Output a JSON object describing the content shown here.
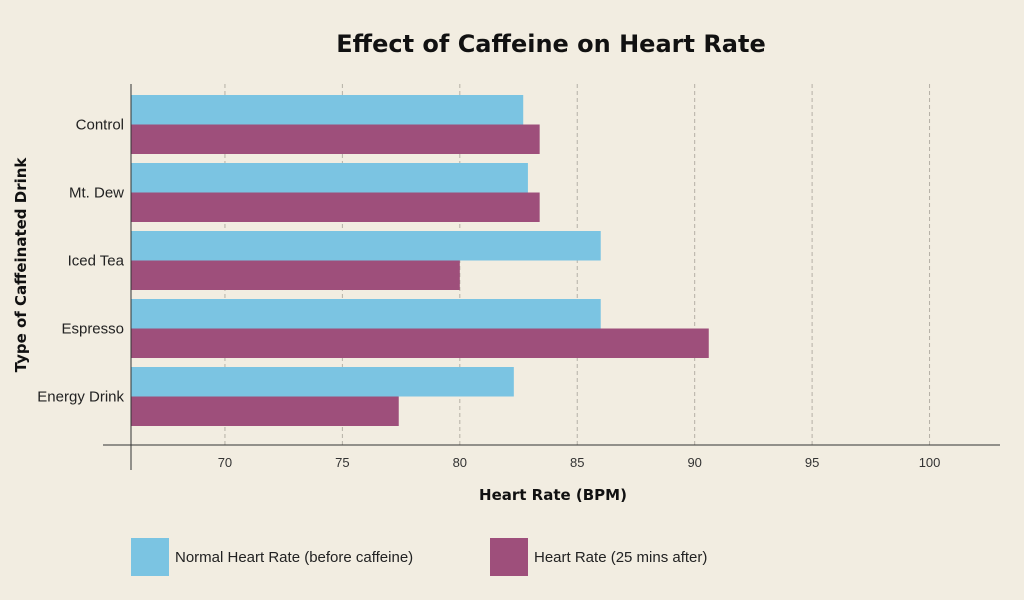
{
  "chart_data": {
    "type": "bar",
    "orientation": "horizontal",
    "title": "Effect of Caffeine on Heart Rate",
    "xlabel": "Heart Rate (BPM)",
    "ylabel": "Type of Caffeinated Drink",
    "categories": [
      "Control",
      "Mt. Dew",
      "Iced Tea",
      "Espresso",
      "Energy Drink"
    ],
    "series": [
      {
        "name": "Normal Heart Rate (before caffeine)",
        "color": "#7bc4e2",
        "values": [
          82.7,
          82.9,
          86.0,
          86.0,
          82.3
        ]
      },
      {
        "name": "Heart Rate (25 mins after)",
        "color": "#9e4f7b",
        "values": [
          83.4,
          83.4,
          80.0,
          90.6,
          77.4
        ]
      }
    ],
    "xlim": [
      66,
      103
    ],
    "xticks": [
      70,
      75,
      80,
      85,
      90,
      95,
      100
    ],
    "grid": true,
    "legend_position": "bottom"
  }
}
